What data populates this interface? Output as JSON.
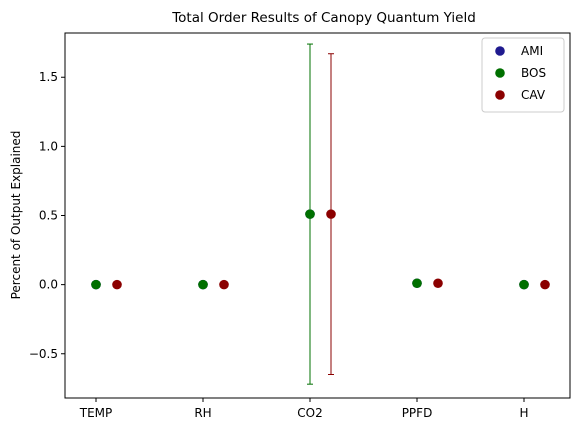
{
  "chart_data": {
    "type": "scatter",
    "title": "Total Order Results of Canopy Quantum Yield",
    "xlabel": "",
    "ylabel": "Percent of Output Explained",
    "categories": [
      "TEMP",
      "RH",
      "CO2",
      "PPFD",
      "H"
    ],
    "ylim": [
      -0.82,
      1.82
    ],
    "yticks": [
      -0.5,
      0.0,
      0.5,
      1.0,
      1.5
    ],
    "ytick_labels": [
      "−0.5",
      "0.0",
      "0.5",
      "1.0",
      "1.5"
    ],
    "grid": false,
    "legend_position": "top-right",
    "series": [
      {
        "name": "AMI",
        "color": "#1f1a8f",
        "values": [
          0.0,
          0.0,
          0.51,
          0.01,
          0.0
        ],
        "errors": [
          0,
          0,
          0,
          0,
          0
        ]
      },
      {
        "name": "BOS",
        "color": "#007000",
        "values": [
          0.0,
          0.0,
          0.51,
          0.01,
          0.0
        ],
        "errors": [
          0,
          0,
          1.23,
          0,
          0
        ]
      },
      {
        "name": "CAV",
        "color": "#8b0000",
        "values": [
          0.0,
          0.0,
          0.51,
          0.01,
          0.0
        ],
        "errors": [
          0,
          0,
          1.16,
          0,
          0
        ]
      }
    ]
  }
}
